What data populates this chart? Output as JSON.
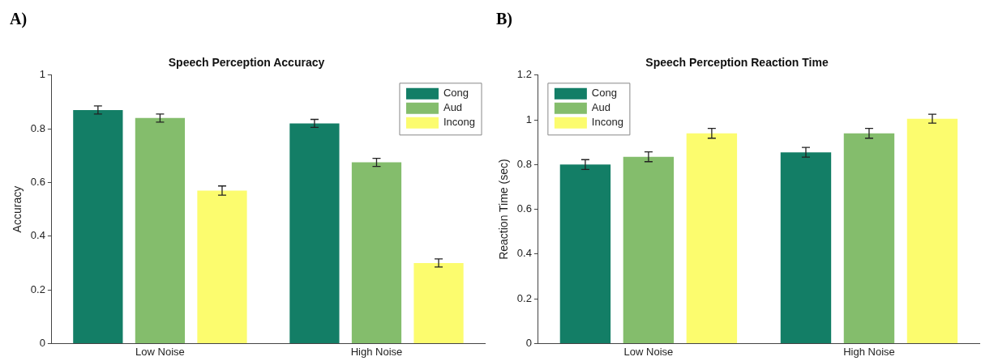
{
  "chart_data": [
    {
      "type": "bar",
      "title": "Speech Perception Accuracy",
      "ylabel": "Accuracy",
      "annotations": [
        "A)"
      ],
      "categories": [
        "Low Noise",
        "High Noise"
      ],
      "series": [
        {
          "name": "Cong",
          "color": "#137e66",
          "values": [
            0.87,
            0.82
          ],
          "errors": [
            0.015,
            0.015
          ]
        },
        {
          "name": "Aud",
          "color": "#84bd6c",
          "values": [
            0.84,
            0.675
          ],
          "errors": [
            0.015,
            0.015
          ]
        },
        {
          "name": "Incong",
          "color": "#fcfc6e",
          "values": [
            0.57,
            0.3
          ],
          "errors": [
            0.017,
            0.015
          ]
        }
      ],
      "ylim": [
        0,
        1
      ],
      "yticks": [
        0,
        0.2,
        0.4,
        0.6,
        0.8,
        1
      ],
      "grid": false,
      "legend": "top right"
    },
    {
      "type": "bar",
      "title": "Speech Perception Reaction Time",
      "ylabel": "Reaction Time (sec)",
      "annotations": [
        "B)"
      ],
      "categories": [
        "Low Noise",
        "High Noise"
      ],
      "series": [
        {
          "name": "Cong",
          "color": "#137e66",
          "values": [
            0.8,
            0.855
          ],
          "errors": [
            0.022,
            0.022
          ]
        },
        {
          "name": "Aud",
          "color": "#84bd6c",
          "values": [
            0.835,
            0.94
          ],
          "errors": [
            0.022,
            0.022
          ]
        },
        {
          "name": "Incong",
          "color": "#fcfc6e",
          "values": [
            0.94,
            1.005
          ],
          "errors": [
            0.022,
            0.02
          ]
        }
      ],
      "ylim": [
        0,
        1.2
      ],
      "yticks": [
        0,
        0.2,
        0.4,
        0.6,
        0.8,
        1,
        1.2
      ],
      "grid": false,
      "legend": "top left"
    }
  ]
}
